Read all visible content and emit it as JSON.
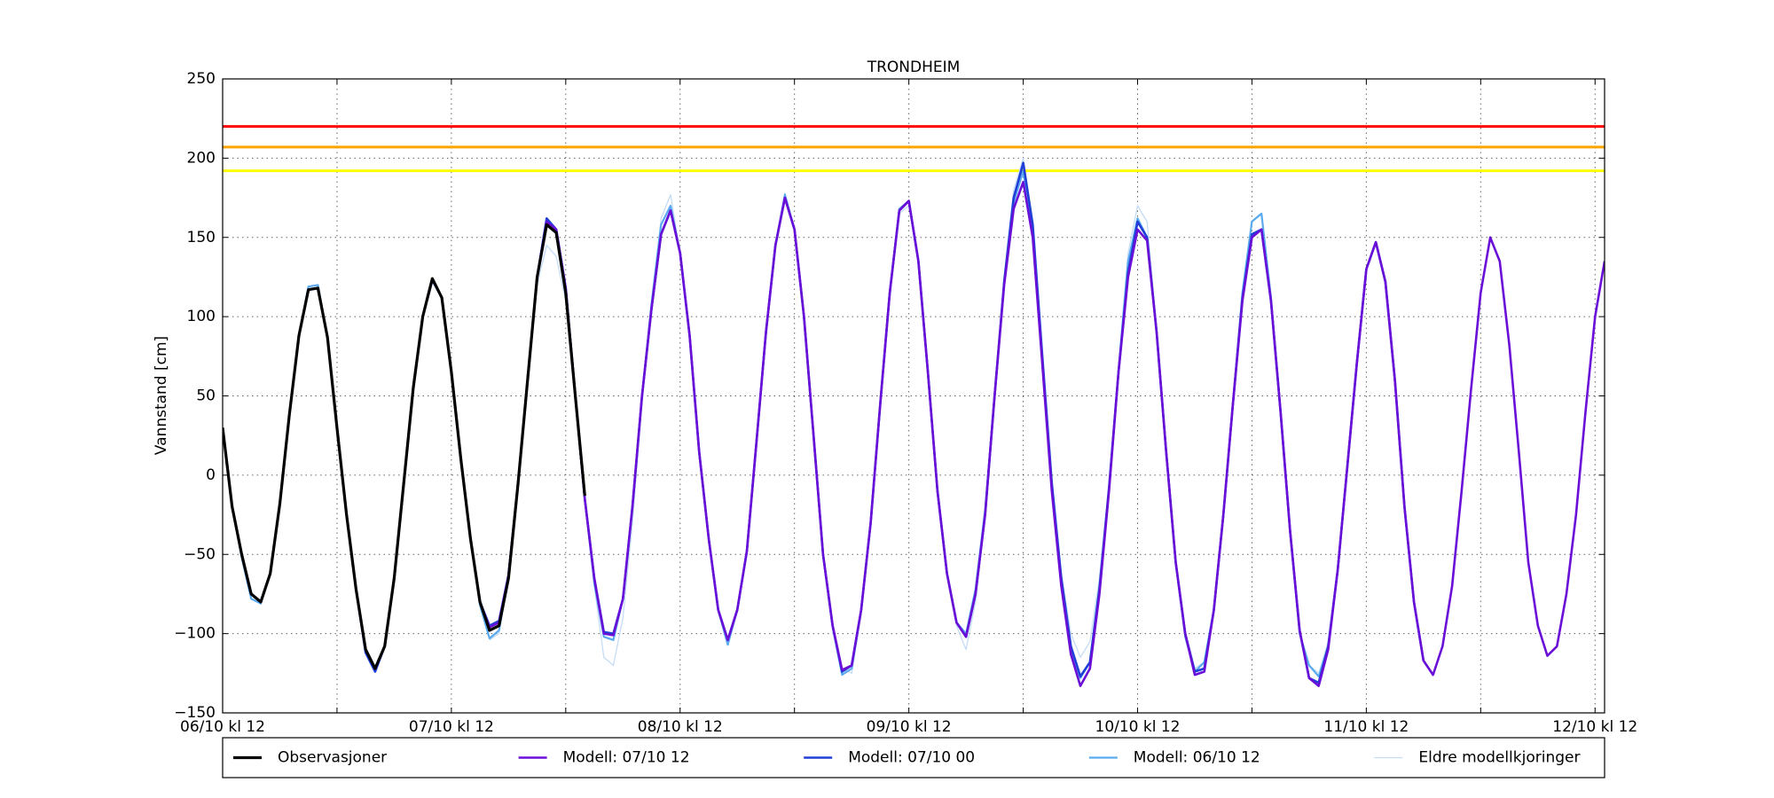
{
  "chart_data": {
    "type": "line",
    "title": "TRONDHEIM",
    "y_label": "Vannstand [cm]",
    "x": [
      0,
      1,
      2,
      3,
      4,
      5,
      6,
      7,
      8,
      9,
      10,
      11,
      12,
      13,
      14,
      15,
      16,
      17,
      18,
      19,
      20,
      21,
      22,
      23,
      24,
      25,
      26,
      27,
      28,
      29,
      30,
      31,
      32,
      33,
      34,
      35,
      36,
      37,
      38,
      39,
      40,
      41,
      42,
      43,
      44,
      45,
      46,
      47,
      48,
      49,
      50,
      51,
      52,
      53,
      54,
      55,
      56,
      57,
      58,
      59,
      60,
      61,
      62,
      63,
      64,
      65,
      66,
      67,
      68,
      69,
      70,
      71,
      72,
      73,
      74,
      75,
      76,
      77,
      78,
      79,
      80,
      81,
      82,
      83,
      84,
      85,
      86,
      87,
      88,
      89,
      90,
      91,
      92,
      93,
      94,
      95,
      96,
      97,
      98,
      99,
      100,
      101,
      102,
      103,
      104,
      105,
      106,
      107,
      108,
      109,
      110,
      111,
      112,
      113,
      114,
      115,
      116,
      117,
      118,
      119,
      120,
      121,
      122,
      123,
      124,
      125,
      126,
      127,
      128,
      129,
      130,
      131,
      132,
      133,
      134,
      135,
      136,
      137,
      138,
      139,
      140,
      141,
      142,
      143,
      144,
      145
    ],
    "xlim": [
      0,
      145
    ],
    "xticks": [
      {
        "value": 0,
        "label": "06/10 kl 12"
      },
      {
        "value": 24,
        "label": "07/10 kl 12"
      },
      {
        "value": 48,
        "label": "08/10 kl 12"
      },
      {
        "value": 72,
        "label": "09/10 kl 12"
      },
      {
        "value": 96,
        "label": "10/10 kl 12"
      },
      {
        "value": 120,
        "label": "11/10 kl 12"
      },
      {
        "value": 144,
        "label": "12/10 kl 12"
      }
    ],
    "xminor_ticks": [
      12,
      36,
      60,
      84,
      108,
      132
    ],
    "ylim": [
      -150,
      250
    ],
    "yticks": [
      {
        "value": -150,
        "label": "−150"
      },
      {
        "value": -100,
        "label": "−100"
      },
      {
        "value": -50,
        "label": "−50"
      },
      0,
      50,
      100,
      150,
      200,
      250
    ],
    "grid": true,
    "legend": "bottom",
    "reference_lines": [
      {
        "value": 220,
        "color": "#ff0000"
      },
      {
        "value": 207,
        "color": "#ffa500"
      },
      {
        "value": 192,
        "color": "#ffff00"
      }
    ],
    "series": [
      {
        "name": "Observasjoner",
        "color": "#000000",
        "values": [
          30,
          -20,
          -50,
          -75,
          -80,
          -62,
          -18,
          38,
          88,
          117,
          118,
          87,
          30,
          -25,
          -72,
          -110,
          -122,
          -108,
          -65,
          -5,
          55,
          100,
          124,
          112,
          65,
          10,
          -40,
          -80,
          -98,
          -95,
          -65,
          -5,
          60,
          125,
          158,
          153,
          115,
          50,
          -13,
          null,
          null,
          null,
          null,
          null,
          null,
          null,
          null,
          null,
          null,
          null,
          null,
          null,
          null,
          null,
          null,
          null,
          null,
          null,
          null,
          null,
          null,
          null,
          null,
          null,
          null,
          null,
          null,
          null,
          null,
          null,
          null,
          null,
          null,
          null,
          null,
          null,
          null,
          null,
          null,
          null,
          null,
          null,
          null,
          null,
          null,
          null,
          null,
          null,
          null,
          null,
          null,
          null,
          null,
          null,
          null,
          null,
          null,
          null,
          null,
          null,
          null,
          null,
          null,
          null,
          null,
          null,
          null,
          null,
          null,
          null,
          null,
          null,
          null,
          null,
          null,
          null,
          null,
          null,
          null,
          null,
          null,
          null,
          null,
          null,
          null,
          null,
          null,
          null,
          null,
          null,
          null,
          null,
          null,
          null,
          null,
          null,
          null,
          null,
          null,
          null,
          null,
          null,
          null,
          null,
          null,
          null
        ]
      },
      {
        "name": "Modell: 07/10 12",
        "color": "#6a0fd8",
        "values": [
          null,
          null,
          null,
          null,
          null,
          null,
          null,
          null,
          null,
          null,
          null,
          null,
          null,
          null,
          null,
          null,
          null,
          null,
          null,
          null,
          null,
          null,
          null,
          null,
          65,
          10,
          -40,
          -80,
          -96,
          -93,
          -63,
          -5,
          60,
          125,
          160,
          155,
          118,
          50,
          -15,
          -65,
          -100,
          -101,
          -78,
          -20,
          50,
          105,
          152,
          167,
          140,
          88,
          15,
          -40,
          -85,
          -104,
          -85,
          -48,
          20,
          90,
          145,
          175,
          155,
          100,
          25,
          -50,
          -95,
          -123,
          -120,
          -85,
          -30,
          45,
          115,
          167,
          173,
          135,
          65,
          -10,
          -62,
          -93,
          -102,
          -75,
          -25,
          50,
          120,
          168,
          185,
          150,
          70,
          -10,
          -70,
          -113,
          -133,
          -122,
          -75,
          -10,
          65,
          125,
          155,
          148,
          90,
          15,
          -55,
          -100,
          -126,
          -124,
          -85,
          -25,
          45,
          110,
          150,
          155,
          110,
          40,
          -35,
          -98,
          -128,
          -133,
          -110,
          -60,
          5,
          70,
          130,
          147,
          122,
          60,
          -20,
          -80,
          -117,
          -126,
          -108,
          -70,
          -10,
          55,
          115,
          150,
          135,
          82,
          15,
          -55,
          -95,
          -114,
          -108,
          -75,
          -25,
          40,
          100,
          135
        ]
      },
      {
        "name": "Modell: 07/10 00",
        "color": "#1f3fd6",
        "values": [
          null,
          null,
          null,
          null,
          null,
          null,
          null,
          null,
          null,
          null,
          null,
          null,
          30,
          -25,
          -72,
          -112,
          -124,
          -108,
          -65,
          -5,
          55,
          100,
          123,
          112,
          65,
          10,
          -40,
          -80,
          -95,
          -92,
          -63,
          -5,
          60,
          125,
          162,
          155,
          118,
          50,
          -15,
          -65,
          -99,
          -100,
          -78,
          -20,
          50,
          105,
          152,
          167,
          140,
          88,
          15,
          -40,
          -85,
          -104,
          -85,
          -48,
          20,
          90,
          145,
          175,
          155,
          100,
          25,
          -50,
          -95,
          -124,
          -120,
          -85,
          -30,
          45,
          115,
          167,
          173,
          135,
          65,
          -10,
          -62,
          -93,
          -102,
          -75,
          -25,
          50,
          122,
          175,
          197,
          158,
          75,
          -5,
          -65,
          -108,
          -127,
          -118,
          -72,
          -8,
          65,
          128,
          160,
          150,
          90,
          15,
          -55,
          -100,
          -124,
          -122,
          -85,
          -25,
          45,
          112,
          152,
          155,
          110,
          40,
          -35,
          -98,
          -128,
          -131,
          -108,
          -60,
          5,
          70,
          130,
          147,
          122,
          60,
          -20,
          -80,
          -117,
          null,
          null,
          null,
          null,
          null,
          null,
          null,
          null,
          null,
          null,
          null,
          null,
          null,
          null,
          null,
          null,
          null,
          null,
          null
        ]
      },
      {
        "name": "Modell: 06/10 12",
        "color": "#5aaaf0",
        "values": [
          30,
          -20,
          -52,
          -78,
          -81,
          -62,
          -18,
          38,
          88,
          119,
          120,
          87,
          30,
          -25,
          -72,
          -112,
          -123,
          -108,
          -65,
          -5,
          55,
          100,
          123,
          112,
          65,
          10,
          -40,
          -82,
          -103,
          -98,
          -63,
          -5,
          60,
          125,
          162,
          155,
          118,
          50,
          -15,
          -68,
          -102,
          -104,
          -78,
          -20,
          50,
          108,
          158,
          170,
          140,
          88,
          15,
          -40,
          -85,
          -107,
          -85,
          -48,
          20,
          90,
          145,
          177,
          155,
          100,
          25,
          -50,
          -96,
          -126,
          -122,
          -85,
          -30,
          45,
          115,
          168,
          173,
          135,
          65,
          -10,
          -62,
          -93,
          -100,
          -72,
          -22,
          50,
          122,
          172,
          192,
          152,
          72,
          -8,
          -70,
          -110,
          -128,
          -118,
          -70,
          -8,
          65,
          135,
          162,
          150,
          90,
          15,
          -55,
          -102,
          -124,
          -118,
          -85,
          -25,
          45,
          115,
          160,
          165,
          112,
          40,
          -35,
          -100,
          -120,
          -127,
          -108,
          -60,
          5,
          70,
          130,
          null,
          null,
          null,
          null,
          null,
          null,
          null,
          null,
          null,
          null,
          null,
          null,
          null,
          null,
          null,
          null,
          null,
          null,
          null,
          null,
          null,
          null,
          null,
          null,
          null
        ]
      },
      {
        "name": "Eldre modellkjoringer",
        "color": "#c4dcf6",
        "values": [
          null,
          null,
          null,
          null,
          null,
          null,
          null,
          null,
          null,
          null,
          null,
          null,
          null,
          null,
          null,
          null,
          null,
          null,
          null,
          null,
          null,
          null,
          null,
          null,
          null,
          null,
          null,
          null,
          -104,
          -100,
          -63,
          -5,
          60,
          120,
          145,
          138,
          110,
          50,
          -15,
          -70,
          -115,
          -120,
          -90,
          -30,
          45,
          108,
          162,
          177,
          140,
          88,
          15,
          -40,
          -85,
          -105,
          -85,
          -48,
          20,
          90,
          145,
          178,
          155,
          100,
          25,
          -50,
          -95,
          -122,
          -125,
          -88,
          -30,
          45,
          115,
          165,
          170,
          135,
          65,
          -10,
          -62,
          -95,
          -110,
          -80,
          -25,
          50,
          125,
          180,
          200,
          155,
          75,
          -5,
          -62,
          -100,
          -115,
          -105,
          -65,
          -5,
          70,
          140,
          170,
          160,
          92,
          15,
          -55,
          -100,
          -122,
          -118,
          -85,
          -25,
          45,
          112,
          152,
          155,
          110,
          40,
          -35,
          -100,
          -120,
          -125,
          -105,
          null,
          null,
          null,
          null,
          null,
          null,
          null,
          null,
          null,
          null,
          null,
          null,
          null,
          null,
          null,
          null,
          null,
          null,
          null,
          null,
          null,
          null,
          null,
          null,
          null,
          null,
          null,
          null,
          null
        ]
      }
    ]
  }
}
